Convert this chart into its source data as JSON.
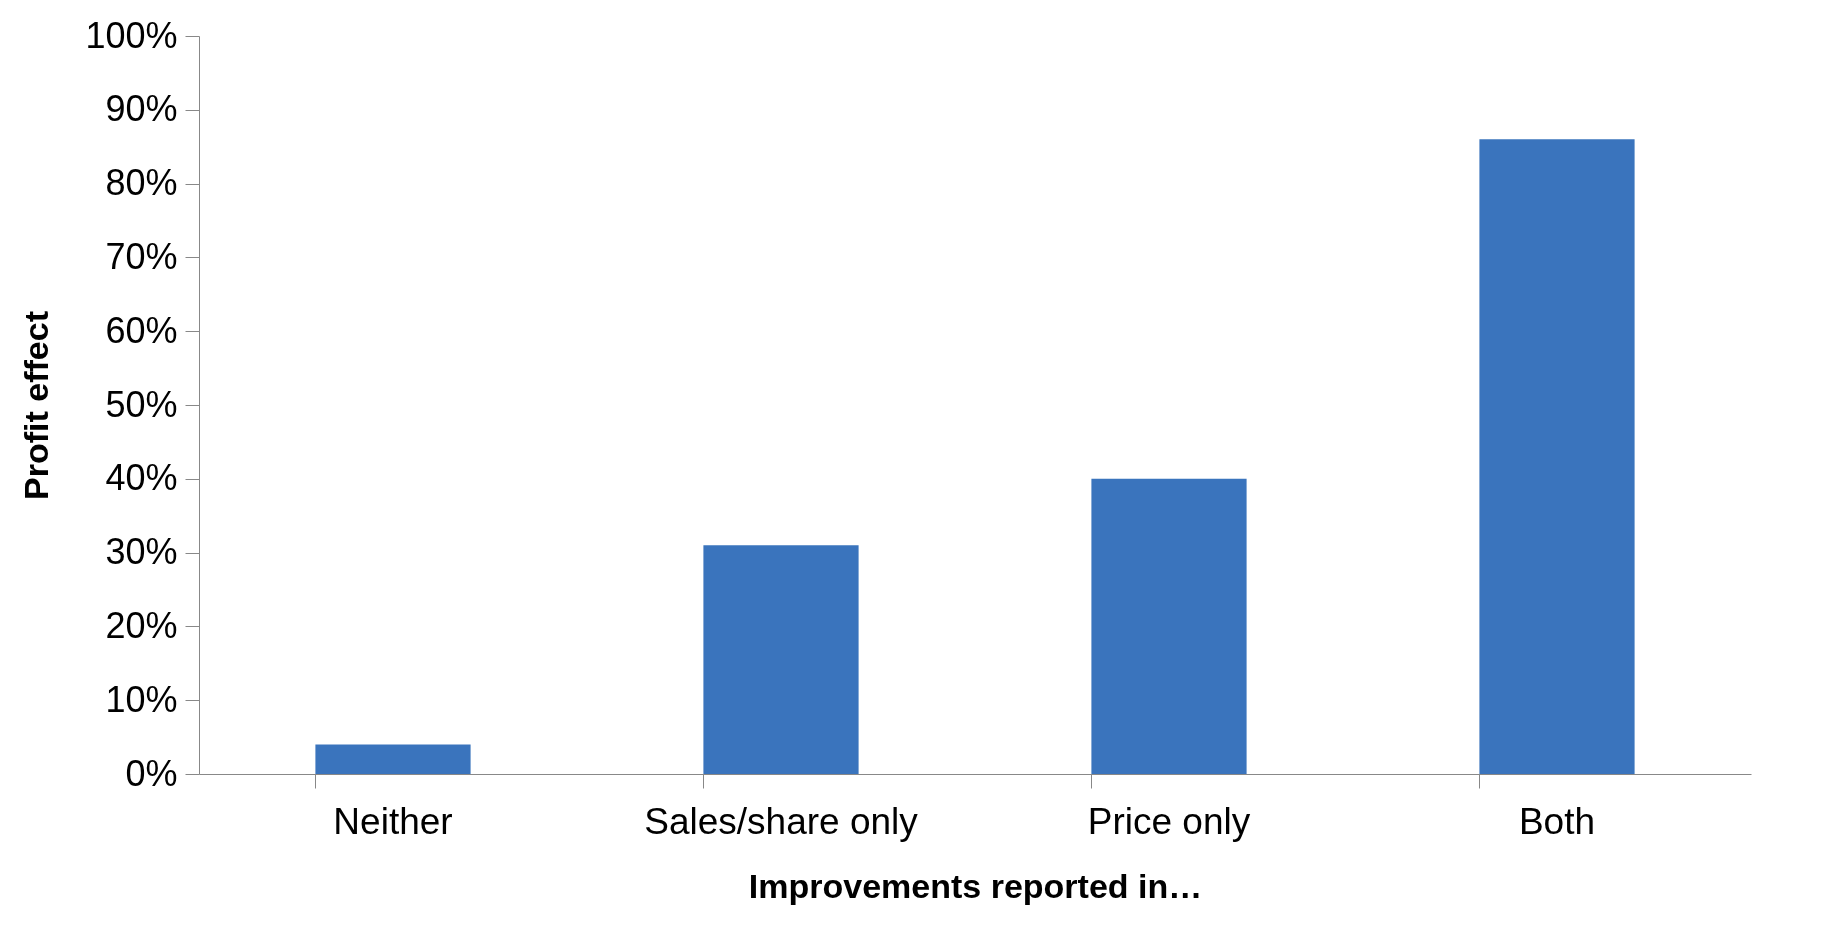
{
  "chart_data": {
    "type": "bar",
    "xlabel": "Improvements reported in…",
    "ylabel": "Profit effect",
    "categories": [
      "Neither",
      "Sales/share only",
      "Price only",
      "Both"
    ],
    "values": [
      0.04,
      0.31,
      0.4,
      0.86
    ],
    "color": "#3a74bd",
    "ylim": [
      0,
      1
    ],
    "yticks": [
      {
        "value": 0,
        "label": "0%"
      },
      {
        "value": 0.1,
        "label": "10%"
      },
      {
        "value": 0.2,
        "label": "20%"
      },
      {
        "value": 0.3,
        "label": "30%"
      },
      {
        "value": 0.4,
        "label": "40%"
      },
      {
        "value": 0.5,
        "label": "50%"
      },
      {
        "value": 0.6,
        "label": "60%"
      },
      {
        "value": 0.7,
        "label": "70%"
      },
      {
        "value": 0.8,
        "label": "80%"
      },
      {
        "value": 0.9,
        "label": "90%"
      },
      {
        "value": 1,
        "label": "100%"
      }
    ]
  }
}
